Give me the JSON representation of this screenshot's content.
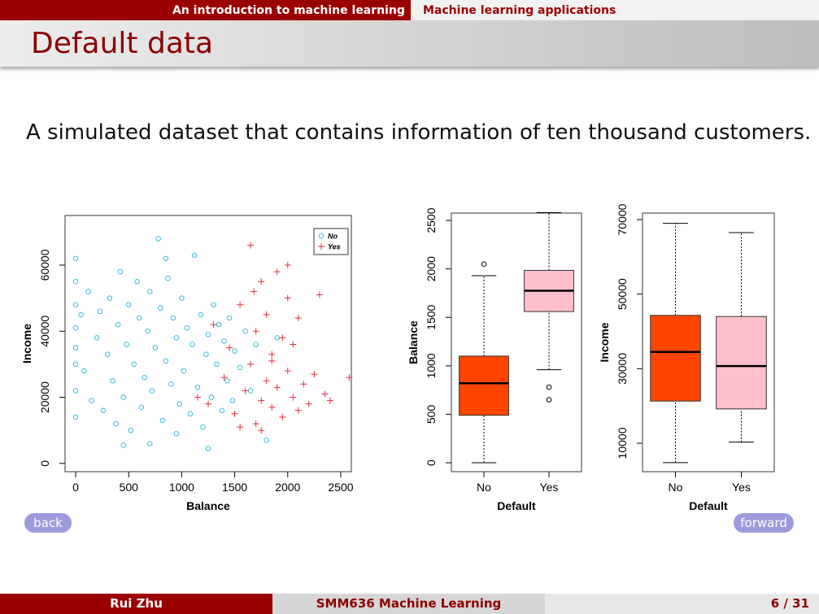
{
  "header": {
    "nav": [
      "An introduction to machine learning",
      "Machine learning applications"
    ],
    "title": "Default data"
  },
  "body": {
    "text": "A simulated dataset that contains information of ten thousand customers."
  },
  "chart_data": [
    {
      "type": "scatter",
      "x_label": "Balance",
      "y_label": "Income",
      "xlim": [
        -100,
        2600
      ],
      "ylim": [
        -2500,
        75000
      ],
      "xticks": [
        0,
        500,
        1000,
        1500,
        2000,
        2500
      ],
      "yticks": [
        0,
        20000,
        40000,
        60000
      ],
      "legend": "upper right",
      "series": [
        {
          "name": "No",
          "color": "#2bb5d8",
          "marker": "circle",
          "x": [
            0,
            0,
            0,
            0,
            0,
            0,
            0,
            0,
            50,
            80,
            120,
            150,
            200,
            230,
            260,
            300,
            320,
            350,
            380,
            400,
            420,
            450,
            480,
            500,
            520,
            550,
            580,
            600,
            620,
            650,
            680,
            700,
            720,
            750,
            780,
            800,
            820,
            850,
            870,
            900,
            920,
            950,
            980,
            1000,
            1020,
            1050,
            1080,
            1100,
            1120,
            1150,
            1180,
            1200,
            1230,
            1250,
            1280,
            1300,
            1330,
            1350,
            1380,
            1400,
            1430,
            1450,
            1480,
            1500,
            1550,
            1600,
            1650,
            1700,
            1800,
            1900,
            450,
            700,
            950,
            1250,
            850
          ],
          "values": [
            62000,
            55000,
            48000,
            41000,
            35000,
            30000,
            22000,
            14000,
            45000,
            28000,
            52000,
            19000,
            38000,
            46000,
            16000,
            33000,
            50000,
            25000,
            12000,
            42000,
            58000,
            20000,
            36000,
            48000,
            10000,
            30000,
            55000,
            44000,
            17000,
            26000,
            40000,
            52000,
            22000,
            35000,
            68000,
            47000,
            13000,
            31000,
            56000,
            24000,
            44000,
            38000,
            18000,
            50000,
            28000,
            41000,
            15000,
            36000,
            63000,
            23000,
            45000,
            11000,
            33000,
            39000,
            20000,
            48000,
            30000,
            42000,
            16000,
            37000,
            25000,
            44000,
            19000,
            34000,
            29000,
            40000,
            22000,
            36000,
            7000,
            38000,
            5500,
            6000,
            9000,
            4500,
            62000
          ]
        },
        {
          "name": "Yes",
          "color": "#e0303a",
          "marker": "plus",
          "x": [
            1150,
            1250,
            1300,
            1400,
            1450,
            1500,
            1550,
            1600,
            1650,
            1650,
            1700,
            1700,
            1750,
            1750,
            1800,
            1800,
            1850,
            1850,
            1900,
            1900,
            1950,
            1950,
            2000,
            2000,
            2050,
            2050,
            2100,
            2100,
            2150,
            2200,
            2250,
            2300,
            2350,
            2400,
            2580,
            1680,
            1550,
            1850,
            2000,
            1750
          ],
          "values": [
            20000,
            18000,
            42000,
            26000,
            35000,
            15000,
            48000,
            22000,
            66000,
            30000,
            12000,
            40000,
            55000,
            19000,
            25000,
            45000,
            17000,
            33000,
            58000,
            23000,
            38000,
            14000,
            28000,
            50000,
            20000,
            36000,
            16000,
            44000,
            24000,
            18000,
            27000,
            51000,
            21000,
            19000,
            26000,
            52000,
            11000,
            31000,
            60000,
            10000
          ]
        }
      ]
    },
    {
      "type": "box",
      "x_label": "Default",
      "y_label": "Balance",
      "categories": [
        "No",
        "Yes"
      ],
      "ylim": [
        -92,
        2576
      ],
      "yticks": [
        0,
        500,
        1000,
        1500,
        2000,
        2500
      ],
      "boxes": [
        {
          "color": "#ff4500",
          "whisker_low": 0,
          "q1": 490,
          "median": 820,
          "q3": 1100,
          "whisker_high": 1930,
          "outliers": [
            2050
          ]
        },
        {
          "color": "#ffc0cb",
          "whisker_low": 960,
          "q1": 1560,
          "median": 1775,
          "q3": 1985,
          "whisker_high": 2580,
          "outliers": [
            780,
            650
          ]
        }
      ]
    },
    {
      "type": "box",
      "x_label": "Default",
      "y_label": "Income",
      "categories": [
        "No",
        "Yes"
      ],
      "ylim": [
        2360,
        71750
      ],
      "yticks": [
        10000,
        30000,
        50000,
        70000
      ],
      "boxes": [
        {
          "color": "#ff4500",
          "whisker_low": 4800,
          "q1": 21300,
          "median": 34500,
          "q3": 44300,
          "whisker_high": 69000,
          "outliers": []
        },
        {
          "color": "#ffc0cb",
          "whisker_low": 10300,
          "q1": 19200,
          "median": 30700,
          "q3": 44000,
          "whisker_high": 66500,
          "outliers": []
        }
      ]
    }
  ],
  "buttons": {
    "back": "back",
    "forward": "forward"
  },
  "footer": {
    "author": "Rui Zhu",
    "course": "SMM636 Machine Learning",
    "page": "6 / 31"
  }
}
